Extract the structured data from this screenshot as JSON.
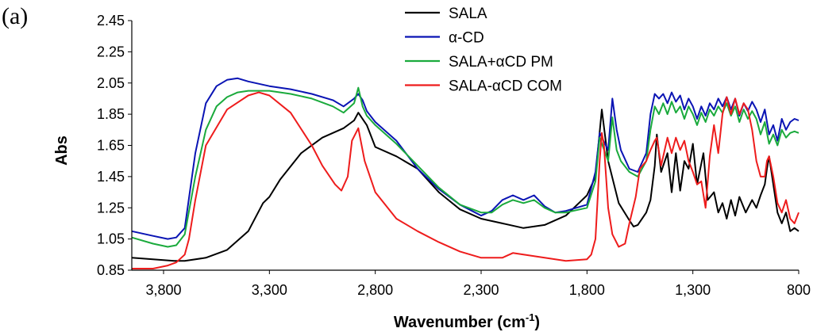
{
  "panel_label": "(a)",
  "chart_data": {
    "type": "line",
    "title": "",
    "xlabel": "Wavenumber (cm",
    "xlabel_sup": "-1",
    "xlabel_suffix": ")",
    "ylabel": "Abs",
    "x_reversed": true,
    "xlim": [
      3950,
      800
    ],
    "ylim": [
      0.85,
      2.45
    ],
    "x_ticks": [
      3800,
      3300,
      2800,
      2300,
      1800,
      1300,
      800
    ],
    "x_tick_labels": [
      "3,800",
      "3,300",
      "2,800",
      "2,300",
      "1,800",
      "1,300",
      "800"
    ],
    "y_ticks": [
      0.85,
      1.05,
      1.25,
      1.45,
      1.65,
      1.85,
      2.05,
      2.25,
      2.45
    ],
    "y_tick_labels": [
      "0.85",
      "1.05",
      "1.25",
      "1.45",
      "1.65",
      "1.85",
      "2.05",
      "2.25",
      "2.45"
    ],
    "legend_position": "top-center",
    "series": [
      {
        "name": "SALA",
        "color": "#000000",
        "x": [
          3950,
          3850,
          3750,
          3700,
          3600,
          3500,
          3400,
          3330,
          3300,
          3250,
          3150,
          3050,
          2950,
          2900,
          2880,
          2840,
          2800,
          2700,
          2600,
          2500,
          2400,
          2300,
          2200,
          2100,
          2000,
          1900,
          1800,
          1760,
          1730,
          1700,
          1650,
          1600,
          1580,
          1560,
          1520,
          1500,
          1480,
          1470,
          1450,
          1420,
          1400,
          1380,
          1360,
          1340,
          1320,
          1300,
          1280,
          1250,
          1230,
          1200,
          1180,
          1160,
          1140,
          1120,
          1100,
          1080,
          1050,
          1020,
          1000,
          980,
          960,
          950,
          940,
          920,
          900,
          880,
          860,
          840,
          820,
          800
        ],
        "y": [
          0.93,
          0.92,
          0.91,
          0.91,
          0.93,
          0.98,
          1.1,
          1.28,
          1.32,
          1.43,
          1.6,
          1.7,
          1.76,
          1.81,
          1.86,
          1.78,
          1.64,
          1.58,
          1.5,
          1.35,
          1.24,
          1.18,
          1.15,
          1.12,
          1.14,
          1.2,
          1.33,
          1.45,
          1.88,
          1.55,
          1.28,
          1.17,
          1.13,
          1.14,
          1.22,
          1.3,
          1.52,
          1.72,
          1.48,
          1.6,
          1.35,
          1.6,
          1.36,
          1.55,
          1.5,
          1.66,
          1.4,
          1.6,
          1.3,
          1.35,
          1.22,
          1.28,
          1.18,
          1.3,
          1.2,
          1.32,
          1.22,
          1.3,
          1.25,
          1.33,
          1.4,
          1.5,
          1.58,
          1.4,
          1.22,
          1.15,
          1.22,
          1.1,
          1.12,
          1.1
        ]
      },
      {
        "name": "α-CD",
        "color": "#0a14b4",
        "x": [
          3950,
          3850,
          3780,
          3740,
          3700,
          3650,
          3600,
          3550,
          3500,
          3450,
          3400,
          3300,
          3200,
          3100,
          3000,
          2950,
          2900,
          2880,
          2860,
          2840,
          2800,
          2700,
          2600,
          2500,
          2400,
          2300,
          2250,
          2200,
          2150,
          2100,
          2050,
          2000,
          1950,
          1900,
          1800,
          1760,
          1740,
          1700,
          1680,
          1660,
          1640,
          1600,
          1560,
          1520,
          1500,
          1480,
          1460,
          1440,
          1420,
          1400,
          1380,
          1360,
          1340,
          1320,
          1300,
          1280,
          1260,
          1240,
          1220,
          1200,
          1180,
          1160,
          1140,
          1120,
          1100,
          1080,
          1060,
          1040,
          1020,
          1000,
          980,
          960,
          940,
          920,
          900,
          880,
          860,
          840,
          820,
          800
        ],
        "y": [
          1.1,
          1.07,
          1.05,
          1.06,
          1.12,
          1.6,
          1.92,
          2.03,
          2.07,
          2.08,
          2.06,
          2.03,
          2.01,
          1.98,
          1.94,
          1.9,
          1.95,
          1.98,
          1.94,
          1.87,
          1.8,
          1.68,
          1.5,
          1.37,
          1.27,
          1.2,
          1.23,
          1.3,
          1.33,
          1.3,
          1.33,
          1.26,
          1.22,
          1.23,
          1.27,
          1.48,
          1.73,
          1.62,
          1.95,
          1.75,
          1.62,
          1.5,
          1.48,
          1.6,
          1.85,
          1.98,
          1.95,
          1.98,
          1.92,
          1.99,
          1.93,
          1.97,
          1.88,
          1.95,
          1.9,
          1.82,
          1.9,
          1.84,
          1.92,
          1.88,
          1.95,
          1.9,
          1.96,
          1.88,
          1.95,
          1.84,
          1.92,
          1.87,
          1.93,
          1.88,
          1.8,
          1.88,
          1.72,
          1.78,
          1.68,
          1.82,
          1.75,
          1.8,
          1.82,
          1.81
        ]
      },
      {
        "name": "SALA+αCD PM",
        "color": "#1aaa3c",
        "x": [
          3950,
          3850,
          3780,
          3740,
          3700,
          3650,
          3600,
          3550,
          3500,
          3450,
          3400,
          3300,
          3200,
          3100,
          3000,
          2950,
          2900,
          2880,
          2860,
          2840,
          2800,
          2700,
          2600,
          2500,
          2400,
          2300,
          2250,
          2200,
          2150,
          2100,
          2050,
          2000,
          1950,
          1900,
          1800,
          1760,
          1740,
          1700,
          1680,
          1660,
          1640,
          1600,
          1560,
          1520,
          1500,
          1480,
          1460,
          1440,
          1420,
          1400,
          1380,
          1360,
          1340,
          1320,
          1300,
          1280,
          1260,
          1240,
          1220,
          1200,
          1180,
          1160,
          1140,
          1120,
          1100,
          1080,
          1060,
          1040,
          1020,
          1000,
          980,
          960,
          940,
          920,
          900,
          880,
          860,
          840,
          820,
          800
        ],
        "y": [
          1.06,
          1.02,
          1.0,
          1.01,
          1.08,
          1.45,
          1.75,
          1.9,
          1.96,
          1.99,
          2.0,
          2.0,
          1.98,
          1.95,
          1.9,
          1.86,
          1.92,
          2.02,
          1.9,
          1.84,
          1.78,
          1.66,
          1.52,
          1.38,
          1.27,
          1.22,
          1.22,
          1.27,
          1.3,
          1.28,
          1.3,
          1.25,
          1.22,
          1.22,
          1.25,
          1.42,
          1.7,
          1.55,
          1.83,
          1.62,
          1.55,
          1.48,
          1.45,
          1.55,
          1.75,
          1.9,
          1.85,
          1.92,
          1.85,
          1.93,
          1.86,
          1.9,
          1.82,
          1.9,
          1.85,
          1.78,
          1.86,
          1.8,
          1.88,
          1.84,
          1.9,
          1.86,
          1.92,
          1.84,
          1.9,
          1.8,
          1.88,
          1.82,
          1.87,
          1.82,
          1.72,
          1.8,
          1.66,
          1.72,
          1.65,
          1.75,
          1.7,
          1.73,
          1.74,
          1.73
        ]
      },
      {
        "name": "SALA-αCD COM",
        "color": "#ee1c1c",
        "x": [
          3950,
          3850,
          3780,
          3740,
          3700,
          3680,
          3650,
          3600,
          3500,
          3400,
          3350,
          3300,
          3200,
          3100,
          3050,
          2990,
          2960,
          2930,
          2910,
          2880,
          2850,
          2800,
          2700,
          2600,
          2500,
          2400,
          2300,
          2200,
          2150,
          2100,
          2000,
          1900,
          1800,
          1780,
          1760,
          1740,
          1730,
          1720,
          1700,
          1680,
          1650,
          1620,
          1600,
          1570,
          1550,
          1520,
          1500,
          1480,
          1470,
          1450,
          1420,
          1400,
          1380,
          1360,
          1340,
          1320,
          1300,
          1280,
          1260,
          1240,
          1220,
          1200,
          1180,
          1160,
          1140,
          1120,
          1100,
          1080,
          1060,
          1040,
          1020,
          1000,
          980,
          960,
          950,
          940,
          920,
          900,
          880,
          860,
          840,
          820,
          800
        ],
        "y": [
          0.86,
          0.86,
          0.88,
          0.9,
          0.95,
          1.05,
          1.3,
          1.65,
          1.88,
          1.97,
          1.99,
          1.97,
          1.86,
          1.65,
          1.52,
          1.4,
          1.36,
          1.45,
          1.68,
          1.76,
          1.55,
          1.35,
          1.18,
          1.1,
          1.03,
          0.97,
          0.93,
          0.93,
          0.96,
          0.95,
          0.93,
          0.91,
          0.92,
          0.95,
          1.05,
          1.55,
          1.73,
          1.65,
          1.25,
          1.08,
          1.0,
          1.02,
          1.15,
          1.32,
          1.5,
          1.55,
          1.62,
          1.68,
          1.7,
          1.52,
          1.7,
          1.6,
          1.7,
          1.62,
          1.68,
          1.55,
          1.48,
          1.4,
          1.42,
          1.25,
          1.58,
          1.78,
          1.6,
          1.85,
          1.96,
          1.85,
          1.95,
          1.85,
          1.92,
          1.88,
          1.75,
          1.55,
          1.45,
          1.45,
          1.55,
          1.58,
          1.45,
          1.28,
          1.22,
          1.3,
          1.18,
          1.15,
          1.22
        ]
      }
    ]
  }
}
